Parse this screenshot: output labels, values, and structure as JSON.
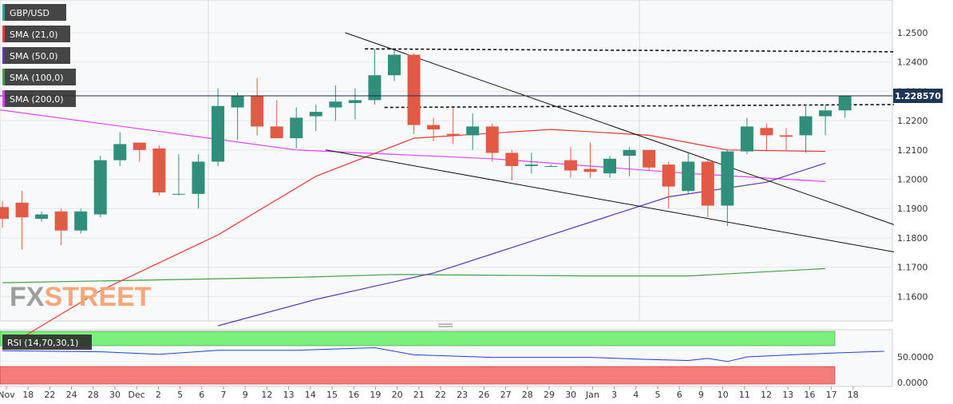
{
  "legend": [
    {
      "label": "GBP/USD",
      "color": "#26a69a"
    },
    {
      "label": "SMA (21,0)",
      "color": "#e53935"
    },
    {
      "label": "SMA (50,0)",
      "color": "#5e35b1"
    },
    {
      "label": "SMA (100,0)",
      "color": "#43a047"
    },
    {
      "label": "SMA (200,0)",
      "color": "#e040fb"
    }
  ],
  "watermark": {
    "prefix": "FX",
    "suffix": "STREET"
  },
  "price_tag": "1.228570",
  "rsi_label": "RSI (14,70,30,1)",
  "rsi_axis_labels": [
    "50.0000",
    "0.0000"
  ],
  "x_axis_labels": [
    "Nov",
    "18",
    "22",
    "24",
    "28",
    "30",
    "Dec",
    "2",
    "5",
    "6",
    "7",
    "9",
    "12",
    "13",
    "14",
    "15",
    "16",
    "19",
    "20",
    "21",
    "22",
    "23",
    "26",
    "27",
    "28",
    "29",
    "30",
    "Jan",
    "3",
    "4",
    "5",
    "6",
    "9",
    "10",
    "11",
    "12",
    "13",
    "16",
    "17",
    "18"
  ],
  "chart_data": {
    "type": "candlestick",
    "title": "GBP/USD",
    "ylim": [
      1.152,
      1.26
    ],
    "y_ticks": [
      "1.2500",
      "1.2400",
      "1.2300",
      "1.2200",
      "1.2100",
      "1.2000",
      "1.1900",
      "1.1800",
      "1.1700",
      "1.1600"
    ],
    "grid": true,
    "candles": [
      {
        "label": "Nov",
        "o": 1.1905,
        "h": 1.1925,
        "l": 1.1835,
        "c": 1.1865
      },
      {
        "label": "17",
        "o": 1.192,
        "h": 1.196,
        "l": 1.176,
        "c": 1.187
      },
      {
        "label": "18",
        "o": 1.1865,
        "h": 1.189,
        "l": 1.1855,
        "c": 1.188
      },
      {
        "label": "21",
        "o": 1.189,
        "h": 1.19,
        "l": 1.1775,
        "c": 1.1825
      },
      {
        "label": "22",
        "o": 1.1825,
        "h": 1.19,
        "l": 1.1815,
        "c": 1.189
      },
      {
        "label": "23",
        "o": 1.188,
        "h": 1.208,
        "l": 1.187,
        "c": 1.2065
      },
      {
        "label": "24",
        "o": 1.2065,
        "h": 1.216,
        "l": 1.2045,
        "c": 1.212
      },
      {
        "label": "25",
        "o": 1.2125,
        "h": 1.2125,
        "l": 1.206,
        "c": 1.21
      },
      {
        "label": "28",
        "o": 1.2105,
        "h": 1.2115,
        "l": 1.1945,
        "c": 1.1955
      },
      {
        "label": "29",
        "o": 1.195,
        "h": 1.2085,
        "l": 1.1945,
        "c": 1.195
      },
      {
        "label": "30",
        "o": 1.195,
        "h": 1.2085,
        "l": 1.19,
        "c": 1.206
      },
      {
        "label": "Dec",
        "o": 1.206,
        "h": 1.231,
        "l": 1.2045,
        "c": 1.225
      },
      {
        "label": "2",
        "o": 1.2245,
        "h": 1.2295,
        "l": 1.2135,
        "c": 1.2285
      },
      {
        "label": "5",
        "o": 1.2285,
        "h": 1.2345,
        "l": 1.215,
        "c": 1.218
      },
      {
        "label": "6",
        "o": 1.218,
        "h": 1.227,
        "l": 1.214,
        "c": 1.214
      },
      {
        "label": "7",
        "o": 1.214,
        "h": 1.2245,
        "l": 1.2105,
        "c": 1.221
      },
      {
        "label": "8",
        "o": 1.2215,
        "h": 1.2255,
        "l": 1.2165,
        "c": 1.223
      },
      {
        "label": "9",
        "o": 1.2245,
        "h": 1.232,
        "l": 1.22,
        "c": 1.2265
      },
      {
        "label": "12",
        "o": 1.226,
        "h": 1.231,
        "l": 1.2205,
        "c": 1.227
      },
      {
        "label": "13",
        "o": 1.227,
        "h": 1.2445,
        "l": 1.2255,
        "c": 1.2355
      },
      {
        "label": "14",
        "o": 1.2355,
        "h": 1.244,
        "l": 1.2335,
        "c": 1.2425
      },
      {
        "label": "15",
        "o": 1.2425,
        "h": 1.243,
        "l": 1.2155,
        "c": 1.2185
      },
      {
        "label": "16",
        "o": 1.2185,
        "h": 1.221,
        "l": 1.213,
        "c": 1.217
      },
      {
        "label": "19",
        "o": 1.2155,
        "h": 1.2245,
        "l": 1.212,
        "c": 1.215
      },
      {
        "label": "20",
        "o": 1.215,
        "h": 1.2225,
        "l": 1.21,
        "c": 1.218
      },
      {
        "label": "21",
        "o": 1.218,
        "h": 1.219,
        "l": 1.206,
        "c": 1.209
      },
      {
        "label": "22",
        "o": 1.209,
        "h": 1.21,
        "l": 1.1995,
        "c": 1.2045
      },
      {
        "label": "23",
        "o": 1.2045,
        "h": 1.209,
        "l": 1.202,
        "c": 1.205
      },
      {
        "label": "26",
        "o": 1.2045,
        "h": 1.205,
        "l": 1.2045,
        "c": 1.2045
      },
      {
        "label": "27",
        "o": 1.2065,
        "h": 1.211,
        "l": 1.2005,
        "c": 1.203
      },
      {
        "label": "28",
        "o": 1.2035,
        "h": 1.2125,
        "l": 1.2005,
        "c": 1.2025
      },
      {
        "label": "29",
        "o": 1.202,
        "h": 1.208,
        "l": 1.2005,
        "c": 1.207
      },
      {
        "label": "30",
        "o": 1.208,
        "h": 1.211,
        "l": 1.201,
        "c": 1.21
      },
      {
        "label": "Jan",
        "o": 1.21,
        "h": 1.21,
        "l": 1.203,
        "c": 1.204
      },
      {
        "label": "3",
        "o": 1.205,
        "h": 1.206,
        "l": 1.19,
        "c": 1.1975
      },
      {
        "label": "4",
        "o": 1.196,
        "h": 1.209,
        "l": 1.195,
        "c": 1.206
      },
      {
        "label": "5",
        "o": 1.206,
        "h": 1.2065,
        "l": 1.187,
        "c": 1.191
      },
      {
        "label": "6",
        "o": 1.191,
        "h": 1.21,
        "l": 1.184,
        "c": 1.2095
      },
      {
        "label": "9",
        "o": 1.2095,
        "h": 1.221,
        "l": 1.2085,
        "c": 1.218
      },
      {
        "label": "10",
        "o": 1.2175,
        "h": 1.219,
        "l": 1.21,
        "c": 1.215
      },
      {
        "label": "11",
        "o": 1.215,
        "h": 1.2175,
        "l": 1.21,
        "c": 1.2145
      },
      {
        "label": "12",
        "o": 1.215,
        "h": 1.2255,
        "l": 1.209,
        "c": 1.2215
      },
      {
        "label": "13",
        "o": 1.2215,
        "h": 1.2255,
        "l": 1.215,
        "c": 1.2235
      },
      {
        "label": "16",
        "o": 1.2235,
        "h": 1.2285,
        "l": 1.221,
        "c": 1.2286
      }
    ],
    "sma21": [
      [
        0,
        1.142
      ],
      [
        5,
        1.162
      ],
      [
        11,
        1.181
      ],
      [
        16,
        1.201
      ],
      [
        21,
        1.214
      ],
      [
        28,
        1.217
      ],
      [
        33,
        1.215
      ],
      [
        37,
        1.21
      ],
      [
        42,
        1.2095
      ]
    ],
    "sma50": [
      [
        11,
        1.15
      ],
      [
        16,
        1.159
      ],
      [
        22,
        1.168
      ],
      [
        28,
        1.181
      ],
      [
        34,
        1.194
      ],
      [
        39,
        1.199
      ],
      [
        42,
        1.2055
      ]
    ],
    "sma100": [
      [
        0,
        1.1647
      ],
      [
        15,
        1.1665
      ],
      [
        20,
        1.1675
      ],
      [
        30,
        1.167
      ],
      [
        35,
        1.167
      ],
      [
        42,
        1.1695
      ]
    ],
    "sma200": [
      [
        -0.5,
        1.224
      ],
      [
        15,
        1.21
      ],
      [
        25,
        1.207
      ],
      [
        35,
        1.202
      ],
      [
        42,
        1.1992
      ]
    ],
    "trendlines": [
      {
        "x1": 17.5,
        "y1": 1.25,
        "x2": 45.5,
        "y2": 1.1845
      },
      {
        "x1": 16.5,
        "y1": 1.21,
        "x2": 45.5,
        "y2": 1.1752
      }
    ],
    "resistance_lines": [
      {
        "x1": 18.5,
        "y1": 1.2445,
        "x2": 45.5,
        "y2": 1.2435
      },
      {
        "x1": 19.5,
        "y1": 1.2245,
        "x2": 45.5,
        "y2": 1.2255
      }
    ],
    "rsi": {
      "overbought_level": 70,
      "oversold_level": 30,
      "values": [
        [
          0,
          62
        ],
        [
          5,
          60
        ],
        [
          8,
          55
        ],
        [
          11,
          63
        ],
        [
          15,
          63
        ],
        [
          19,
          68
        ],
        [
          21,
          54
        ],
        [
          25,
          49
        ],
        [
          30,
          49
        ],
        [
          33,
          45
        ],
        [
          35,
          43
        ],
        [
          36,
          47
        ],
        [
          37,
          41
        ],
        [
          38,
          50
        ],
        [
          42,
          57
        ],
        [
          45,
          61
        ]
      ]
    }
  }
}
